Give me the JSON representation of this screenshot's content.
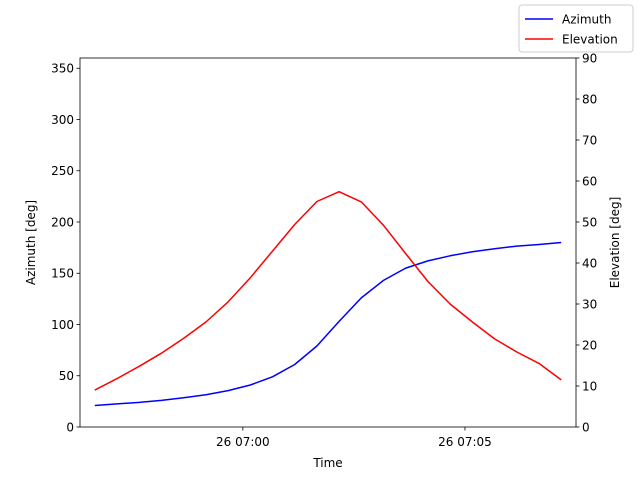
{
  "chart_data": {
    "type": "line",
    "x": [
      "06:56:40",
      "06:57:10",
      "06:57:40",
      "06:58:10",
      "06:58:40",
      "06:59:10",
      "06:59:40",
      "07:00:10",
      "07:00:40",
      "07:01:10",
      "07:01:40",
      "07:02:10",
      "07:02:40",
      "07:03:10",
      "07:03:40",
      "07:04:10",
      "07:04:40",
      "07:05:10",
      "07:05:40",
      "07:06:10",
      "07:06:40",
      "07:07:10"
    ],
    "xlabel": "Time",
    "xticks": [
      {
        "time": "07:00:00",
        "label": "26 07:00"
      },
      {
        "time": "07:05:00",
        "label": "26 07:05"
      }
    ],
    "xlim": [
      "06:56:20",
      "07:07:30"
    ],
    "y_left": {
      "label": "Azimuth [deg]",
      "lim": [
        0,
        360
      ],
      "ticks": [
        "0",
        "50",
        "100",
        "150",
        "200",
        "250",
        "300",
        "350"
      ]
    },
    "y_right": {
      "label": "Elevation [deg]",
      "lim": [
        0,
        90
      ],
      "ticks": [
        "0",
        "10",
        "20",
        "30",
        "40",
        "50",
        "60",
        "70",
        "80",
        "90"
      ]
    },
    "series": [
      {
        "name": "Azimuth",
        "axis": "left",
        "color": "#0000ff",
        "values": [
          21,
          22.5,
          24,
          26,
          28.5,
          31.5,
          35.5,
          41,
          49,
          61,
          79,
          103,
          126,
          143,
          155,
          162,
          167,
          171,
          174,
          176.5,
          178,
          180
        ]
      },
      {
        "name": "Elevation",
        "axis": "right",
        "color": "#ff0000",
        "values": [
          9,
          11.8,
          14.8,
          18,
          21.6,
          25.6,
          30.5,
          36.4,
          42.9,
          49.4,
          55,
          57.4,
          54.9,
          49.2,
          42.3,
          35.5,
          30,
          25.6,
          21.5,
          18.3,
          15.5,
          11.5
        ]
      }
    ],
    "legend_position": "top-right (outside axes)",
    "grid": false
  }
}
